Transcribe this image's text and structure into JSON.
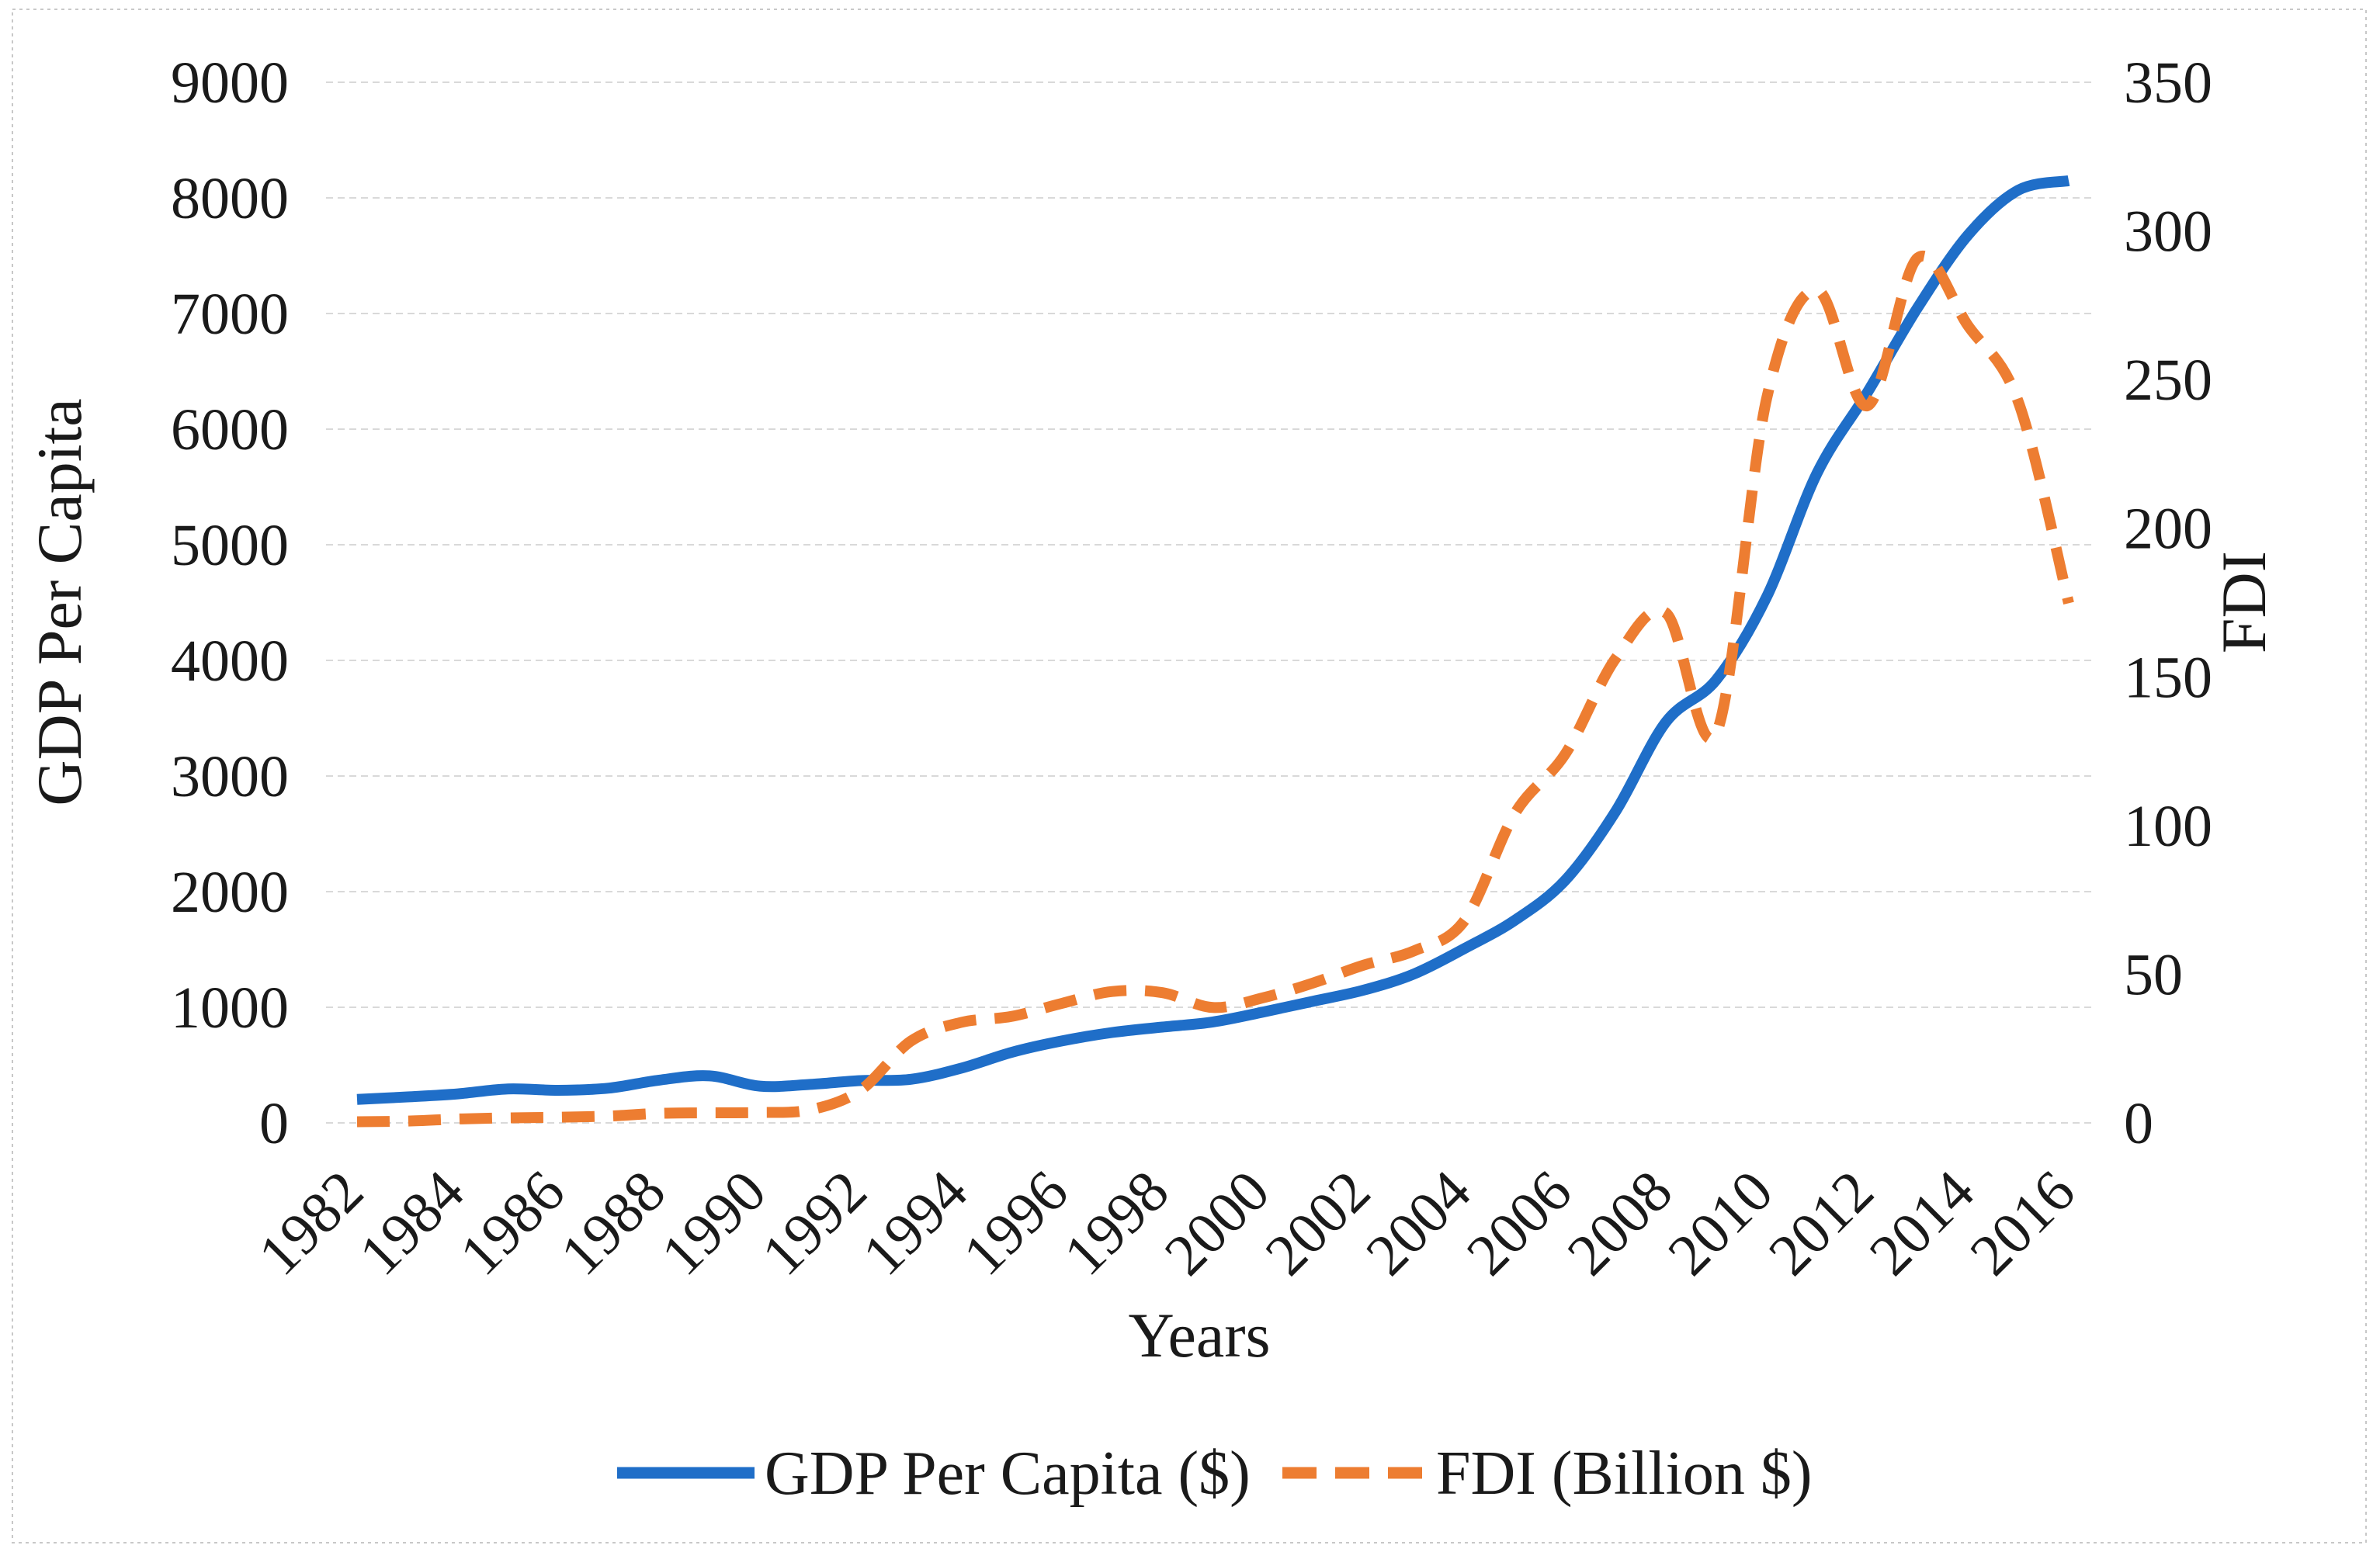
{
  "figure": {
    "background": "#ffffff",
    "border_color": "#c8c8c8"
  },
  "chart_data": {
    "type": "line",
    "title": "",
    "xlabel": "Years",
    "ylabel_left": "GDP Per Capita",
    "ylabel_right": "FDI",
    "x": [
      1982,
      1983,
      1984,
      1985,
      1986,
      1987,
      1988,
      1989,
      1990,
      1991,
      1992,
      1993,
      1994,
      1995,
      1996,
      1997,
      1998,
      1999,
      2000,
      2001,
      2002,
      2003,
      2004,
      2005,
      2006,
      2007,
      2008,
      2009,
      2010,
      2011,
      2012,
      2013,
      2014,
      2015,
      2016
    ],
    "series": [
      {
        "name": "GDP Per Capita ($)",
        "axis": "left",
        "color": "#1f6ec8",
        "style": "solid",
        "values": [
          203,
          225,
          251,
          294,
          282,
          301,
          370,
          407,
          318,
          333,
          366,
          377,
          473,
          610,
          709,
          782,
          829,
          873,
          959,
          1053,
          1149,
          1289,
          1509,
          1753,
          2099,
          2694,
          3468,
          3832,
          4550,
          5618,
          6317,
          7051,
          7679,
          8067,
          8148
        ]
      },
      {
        "name": "FDI (Billion $)",
        "axis": "right",
        "color": "#ed7d31",
        "style": "dashed",
        "values": [
          0.4,
          0.6,
          1.3,
          1.7,
          1.9,
          2.3,
          3.2,
          3.4,
          3.5,
          4.4,
          11.0,
          27.5,
          33.8,
          35.8,
          40.2,
          44.2,
          43.8,
          38.8,
          42.1,
          47.1,
          53.1,
          57.9,
          68.1,
          104.1,
          124.1,
          156.2,
          171.5,
          131.1,
          243.7,
          280.1,
          241.2,
          290.9,
          268.1,
          242.5,
          174.8
        ]
      }
    ],
    "ylim_left": [
      0,
      9000
    ],
    "ylim_right": [
      0,
      350
    ],
    "yticks_left": [
      0,
      1000,
      2000,
      3000,
      4000,
      5000,
      6000,
      7000,
      8000,
      9000
    ],
    "yticks_right": [
      0,
      50,
      100,
      150,
      200,
      250,
      300,
      350
    ],
    "xticks": [
      1982,
      1984,
      1986,
      1988,
      1990,
      1992,
      1994,
      1996,
      1998,
      2000,
      2002,
      2004,
      2006,
      2008,
      2010,
      2012,
      2014,
      2016
    ],
    "grid": "horizontal",
    "gridline_color": "#d9d9d9",
    "legend_position": "bottom",
    "smooth_lines": true
  }
}
